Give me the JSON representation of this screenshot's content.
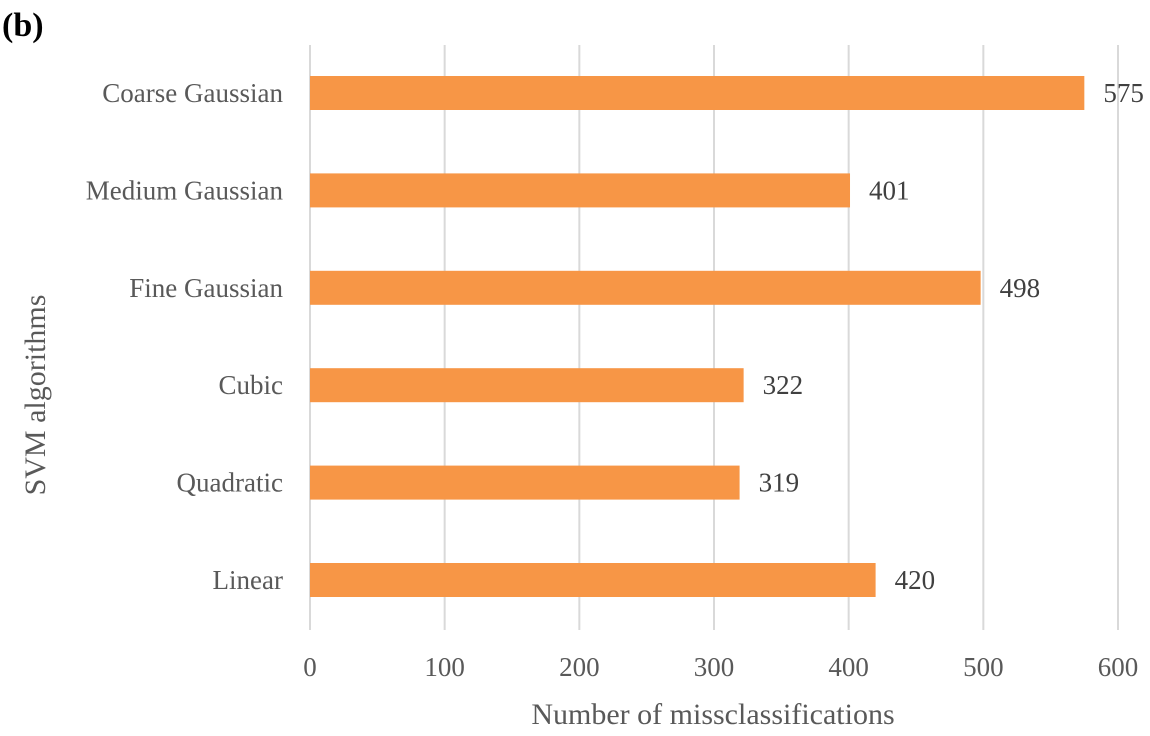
{
  "panel_label": "(b)",
  "chart_data": {
    "type": "bar",
    "orientation": "horizontal",
    "categories": [
      "Coarse Gaussian",
      "Medium Gaussian",
      "Fine Gaussian",
      "Cubic",
      "Quadratic",
      "Linear"
    ],
    "values": [
      575,
      401,
      498,
      322,
      319,
      420
    ],
    "xlabel": "Number of missclassifications",
    "ylabel": "SVM algorithms",
    "xlim": [
      0,
      600
    ],
    "xticks": [
      "0",
      "100",
      "200",
      "300",
      "400",
      "500",
      "600"
    ],
    "grid": "vertical",
    "legend": "none",
    "bar_color": "#F79646",
    "grid_color": "#D9D9D9"
  }
}
